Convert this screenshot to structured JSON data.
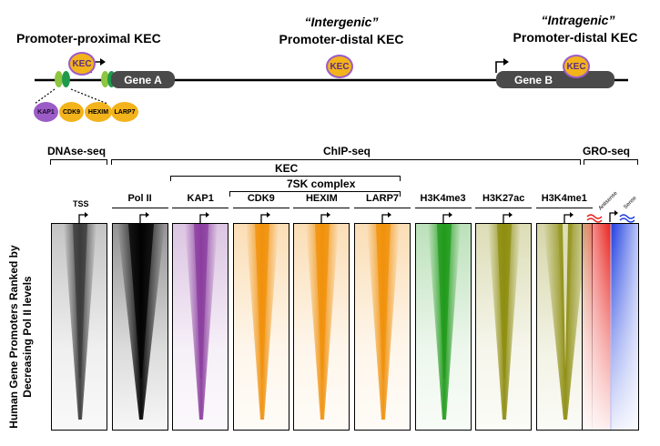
{
  "top": {
    "proximal_label": "Promoter-proximal KEC",
    "intergenic_title": "“Intergenic”",
    "intergenic_sub": "Promoter-distal KEC",
    "intragenic_title": "“Intragenic”",
    "intragenic_sub": "Promoter-distal KEC",
    "kec": "KEC",
    "gene_a": "Gene A",
    "gene_b": "Gene B",
    "factors": [
      "KAP1",
      "CDK9",
      "HEXIM",
      "LARP7"
    ]
  },
  "groups": {
    "dnase": "DNAse-seq",
    "chip": "ChIP-seq",
    "gro": "GRO-seq",
    "kec": "KEC",
    "sk7": "7SK complex"
  },
  "y_axis": {
    "line1": "Human Gene Promoters Ranked by",
    "line2": "Decreasing Pol II levels"
  },
  "tss": "TSS",
  "gro_strands": {
    "antisense": "Antisense",
    "sense": "Sense"
  },
  "panels": [
    {
      "label": "",
      "color": "#3a3a3a"
    },
    {
      "label": "Pol II",
      "color": "#000000"
    },
    {
      "label": "KAP1",
      "color": "#8a3c9e"
    },
    {
      "label": "CDK9",
      "color": "#f0900a"
    },
    {
      "label": "HEXIM",
      "color": "#f0900a"
    },
    {
      "label": "LARP7",
      "color": "#f0900a"
    },
    {
      "label": "H3K4me3",
      "color": "#1f9a1a"
    },
    {
      "label": "H3K27ac",
      "color": "#8c8c0e"
    },
    {
      "label": "H3K4me1",
      "color": "#8c8c0e"
    }
  ],
  "colors": {
    "gro_antisense": "#e8201a",
    "gro_sense": "#1c3de0",
    "kec_fill": "#f3b31b",
    "kec_ring": "#9b5cc7"
  }
}
